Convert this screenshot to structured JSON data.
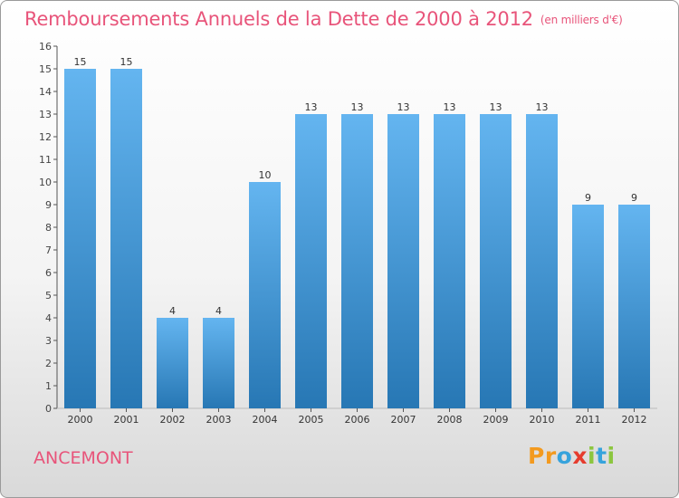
{
  "title": "Remboursements Annuels de la Dette de 2000 à 2012",
  "subtitle": "(en milliers d'€)",
  "location": "ANCEMONT",
  "logo": {
    "text": "Proxiti",
    "letters": [
      "P",
      "r",
      "o",
      "x",
      "i",
      "t",
      "i"
    ],
    "colors": [
      "#f39a1f",
      "#f39a1f",
      "#37a3dc",
      "#e63c2e",
      "#8cc63f",
      "#37a3dc",
      "#8cc63f"
    ]
  },
  "colors": {
    "bar_light": "#64b5f0",
    "bar_dark": "#2777b4",
    "title": "#e8547a"
  },
  "chart_data": {
    "type": "bar",
    "title": "Remboursements Annuels de la Dette de 2000 à 2012",
    "subtitle": "(en milliers d'€)",
    "categories": [
      "2000",
      "2001",
      "2002",
      "2003",
      "2004",
      "2005",
      "2006",
      "2007",
      "2008",
      "2009",
      "2010",
      "2011",
      "2012"
    ],
    "values": [
      15,
      15,
      4,
      4,
      10,
      13,
      13,
      13,
      13,
      13,
      13,
      9,
      9
    ],
    "ylim": [
      0,
      16
    ],
    "yticks": [
      0,
      1,
      2,
      3,
      4,
      5,
      6,
      7,
      8,
      9,
      10,
      11,
      12,
      13,
      14,
      15,
      16
    ],
    "grid": false,
    "legend": "none"
  }
}
